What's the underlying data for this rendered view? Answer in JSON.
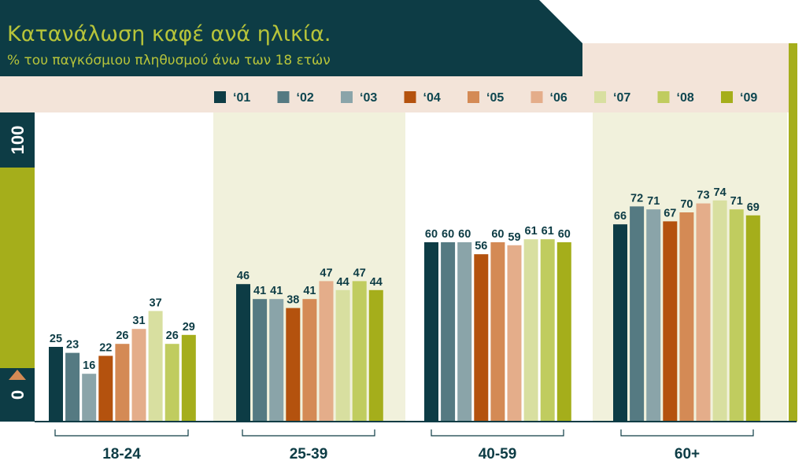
{
  "title": "Κατανάλωση καφέ ανά ηλικία.",
  "subtitle": "% του παγκόσμιου πληθυσμού άνω των 18 ετών",
  "axis": {
    "top_label": "100",
    "bottom_label": "0"
  },
  "colors": {
    "header_dark": "#0d3c45",
    "legend_band": "#f3e4d9",
    "panel_shade": "#f1f1dc",
    "accent_green": "#a5ae1b",
    "baseline": "#0d3c45"
  },
  "chart_data": {
    "type": "bar",
    "title": "Κατανάλωση καφέ ανά ηλικία.",
    "subtitle": "% του παγκόσμιου πληθυσμού άνω των 18 ετών",
    "categories": [
      "18-24",
      "25-39",
      "40-59",
      "60+"
    ],
    "ylim": [
      0,
      100
    ],
    "legend": "top",
    "series": [
      {
        "name": "‘01",
        "color": "#0d3c45",
        "values": [
          25,
          46,
          60,
          66
        ]
      },
      {
        "name": "‘02",
        "color": "#557a82",
        "values": [
          23,
          41,
          60,
          72
        ]
      },
      {
        "name": "‘03",
        "color": "#8aa4a9",
        "values": [
          16,
          41,
          60,
          71
        ]
      },
      {
        "name": "‘04",
        "color": "#b4520e",
        "values": [
          22,
          38,
          56,
          67
        ]
      },
      {
        "name": "‘05",
        "color": "#d48a55",
        "values": [
          26,
          41,
          60,
          70
        ]
      },
      {
        "name": "‘06",
        "color": "#e4ad8a",
        "values": [
          31,
          47,
          59,
          73
        ]
      },
      {
        "name": "‘07",
        "color": "#d8dfa0",
        "values": [
          37,
          44,
          61,
          74
        ]
      },
      {
        "name": "‘08",
        "color": "#c0cc5f",
        "values": [
          26,
          47,
          61,
          71
        ]
      },
      {
        "name": "‘09",
        "color": "#a5ae1b",
        "values": [
          29,
          44,
          60,
          69
        ]
      }
    ]
  }
}
